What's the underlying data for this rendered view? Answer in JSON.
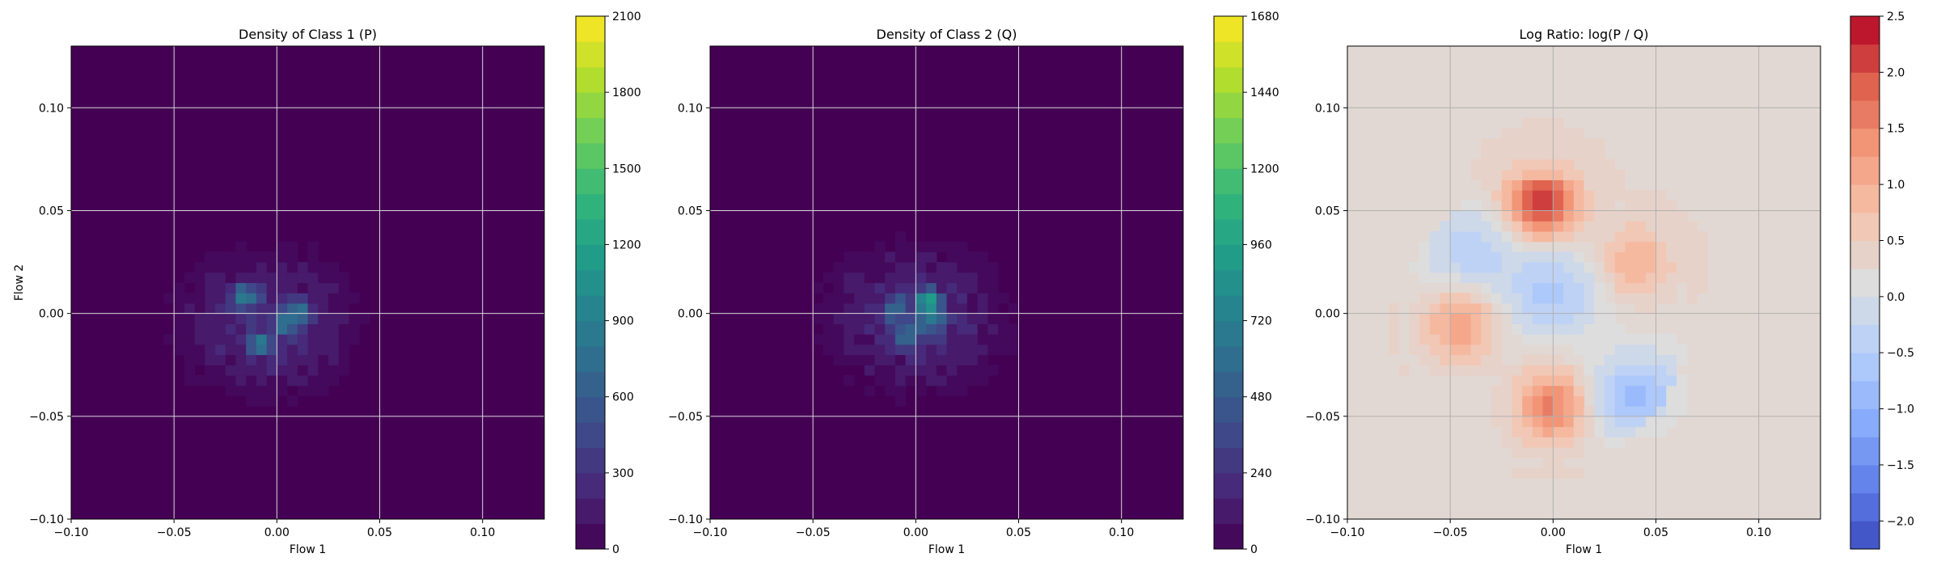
{
  "chart_data": [
    {
      "type": "heatmap",
      "title": "Density of Class 1 (P)",
      "xlabel": "Flow 1",
      "ylabel": "Flow 2",
      "xlim": [
        -0.1,
        0.13
      ],
      "ylim": [
        -0.1,
        0.13
      ],
      "xticks": [
        -0.1,
        -0.05,
        0.0,
        0.05,
        0.1
      ],
      "xtick_labels": [
        "−0.10",
        "−0.05",
        "0.00",
        "0.05",
        "0.10"
      ],
      "yticks": [
        -0.1,
        -0.05,
        0.0,
        0.05,
        0.1
      ],
      "ytick_labels": [
        "−0.10",
        "−0.05",
        "0.00",
        "0.05",
        "0.10"
      ],
      "grid": true,
      "colormap": "viridis",
      "colorbar": {
        "vmin": 0,
        "vmax": 2100,
        "levels": 21,
        "ticks": [
          0,
          300,
          600,
          900,
          1200,
          1500,
          1800,
          2100
        ],
        "tick_labels": [
          "0",
          "300",
          "600",
          "900",
          "1200",
          "1500",
          "1800",
          "2100"
        ]
      },
      "density_center": [
        -0.005,
        -0.005
      ],
      "hotspots": [
        [
          -0.016,
          0.009
        ],
        [
          0.005,
          -0.004
        ],
        [
          -0.008,
          -0.015
        ],
        [
          0.012,
          0.002
        ]
      ]
    },
    {
      "type": "heatmap",
      "title": "Density of Class 2 (Q)",
      "xlabel": "Flow 1",
      "ylabel": "",
      "xlim": [
        -0.1,
        0.13
      ],
      "ylim": [
        -0.1,
        0.13
      ],
      "xticks": [
        -0.1,
        -0.05,
        0.0,
        0.05,
        0.1
      ],
      "xtick_labels": [
        "−0.10",
        "−0.05",
        "0.00",
        "0.05",
        "0.10"
      ],
      "yticks": [
        -0.1,
        -0.05,
        0.0,
        0.05,
        0.1
      ],
      "ytick_labels": [
        "−0.10",
        "−0.05",
        "0.00",
        "0.05",
        "0.10"
      ],
      "grid": true,
      "colormap": "viridis",
      "colorbar": {
        "vmin": 0,
        "vmax": 1680,
        "levels": 21,
        "ticks": [
          0,
          240,
          480,
          720,
          960,
          1200,
          1440,
          1680
        ],
        "tick_labels": [
          "0",
          "240",
          "480",
          "720",
          "960",
          "1200",
          "1440",
          "1680"
        ]
      },
      "density_center": [
        0.0,
        -0.003
      ],
      "hotspots": [
        [
          0.006,
          0.007
        ],
        [
          -0.01,
          0.003
        ],
        [
          0.008,
          -0.003
        ],
        [
          -0.004,
          -0.01
        ]
      ]
    },
    {
      "type": "heatmap",
      "title": "Log Ratio: log(P / Q)",
      "xlabel": "Flow 1",
      "ylabel": "",
      "xlim": [
        -0.1,
        0.13
      ],
      "ylim": [
        -0.1,
        0.13
      ],
      "xticks": [
        -0.1,
        -0.05,
        0.0,
        0.05,
        0.1
      ],
      "xtick_labels": [
        "−0.10",
        "−0.05",
        "0.00",
        "0.05",
        "0.10"
      ],
      "yticks": [
        -0.1,
        -0.05,
        0.0,
        0.05,
        0.1
      ],
      "ytick_labels": [
        "−0.10",
        "−0.05",
        "0.00",
        "0.05",
        "0.10"
      ],
      "grid": true,
      "colormap": "coolwarm",
      "colorbar": {
        "vmin": -2.25,
        "vmax": 2.5,
        "levels": 19,
        "ticks": [
          -2.0,
          -1.5,
          -1.0,
          -0.5,
          0.0,
          0.5,
          1.0,
          1.5,
          2.0,
          2.5
        ],
        "tick_labels": [
          "−2.0",
          "−1.5",
          "−1.0",
          "−0.5",
          "0.0",
          "0.5",
          "1.0",
          "1.5",
          "2.0",
          "2.5"
        ]
      },
      "positive_regions": [
        [
          -0.005,
          0.055,
          2.3
        ],
        [
          0.0,
          -0.045,
          1.6
        ],
        [
          -0.045,
          -0.005,
          1.2
        ],
        [
          0.04,
          0.025,
          1.0
        ]
      ],
      "negative_regions": [
        [
          0.04,
          -0.04,
          -0.8
        ],
        [
          0.0,
          0.01,
          -0.6
        ],
        [
          -0.04,
          0.03,
          -0.4
        ]
      ]
    }
  ]
}
